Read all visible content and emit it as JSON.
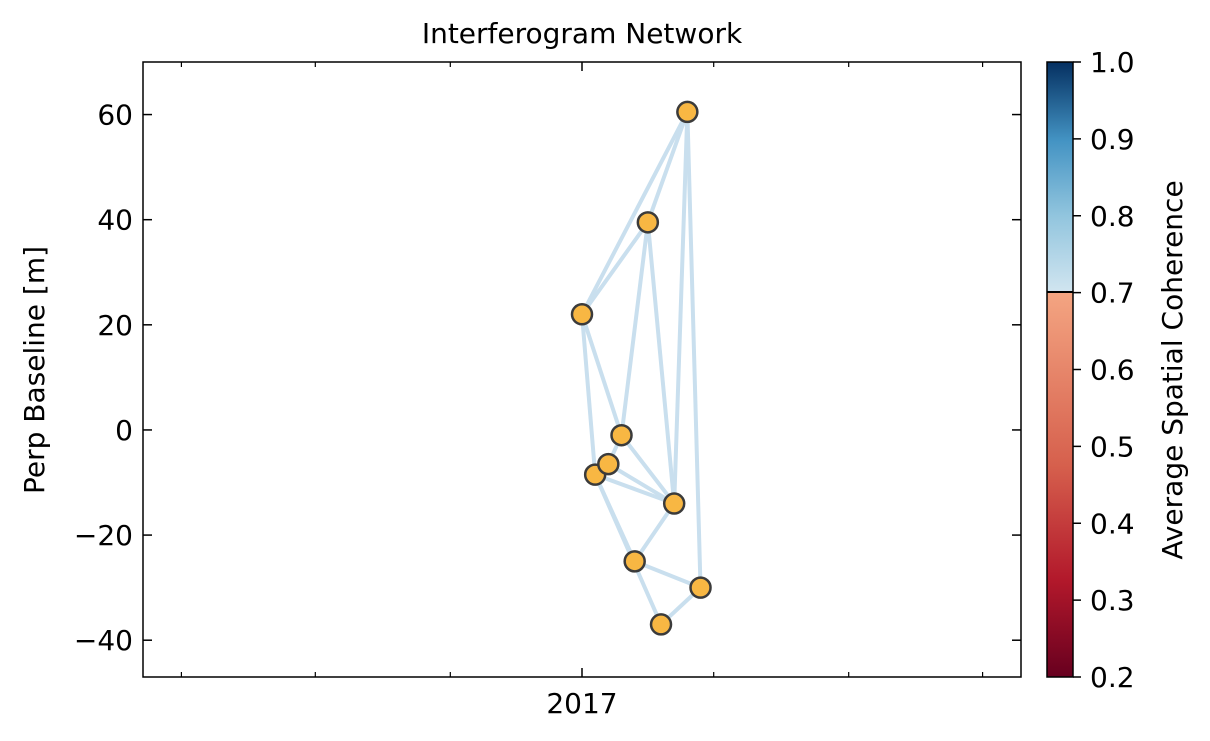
{
  "chart_data": {
    "type": "scatter",
    "title": "Interferogram Network",
    "xlabel": "",
    "ylabel": "Perp Baseline [m]",
    "x_tick_labels": [
      "2017"
    ],
    "y_ticks": [
      -40,
      -20,
      0,
      20,
      40,
      60
    ],
    "ylim": [
      -47,
      70
    ],
    "grid": false,
    "nodes": [
      {
        "id": "A",
        "date": "2017-01-01",
        "bperp": 22
      },
      {
        "id": "B",
        "date": "2017-01-13",
        "bperp": -8.5
      },
      {
        "id": "C",
        "date": "2017-01-25",
        "bperp": -6.5
      },
      {
        "id": "D",
        "date": "2017-02-06",
        "bperp": -1
      },
      {
        "id": "E",
        "date": "2017-02-18",
        "bperp": -25
      },
      {
        "id": "F",
        "date": "2017-03-02",
        "bperp": 39.5
      },
      {
        "id": "G",
        "date": "2017-03-14",
        "bperp": -37
      },
      {
        "id": "H",
        "date": "2017-03-26",
        "bperp": -14
      },
      {
        "id": "I",
        "date": "2017-04-07",
        "bperp": 60.5
      },
      {
        "id": "J",
        "date": "2017-04-19",
        "bperp": -30
      }
    ],
    "edges": [
      [
        "A",
        "I"
      ],
      [
        "A",
        "F"
      ],
      [
        "A",
        "D"
      ],
      [
        "A",
        "B"
      ],
      [
        "F",
        "I"
      ],
      [
        "F",
        "D"
      ],
      [
        "F",
        "H"
      ],
      [
        "I",
        "H"
      ],
      [
        "I",
        "J"
      ],
      [
        "D",
        "C"
      ],
      [
        "D",
        "H"
      ],
      [
        "C",
        "B"
      ],
      [
        "C",
        "H"
      ],
      [
        "B",
        "H"
      ],
      [
        "B",
        "E"
      ],
      [
        "B",
        "G"
      ],
      [
        "E",
        "H"
      ],
      [
        "E",
        "J"
      ],
      [
        "G",
        "J"
      ]
    ],
    "node_color": "#f8b743",
    "edge_color": "#c9dfee",
    "colorbar": {
      "label": "Average Spatial Coherence",
      "range": [
        0.2,
        1.0
      ],
      "ticks": [
        "0.2",
        "0.3",
        "0.4",
        "0.5",
        "0.6",
        "0.7",
        "0.8",
        "0.9",
        "1.0"
      ],
      "split": 0.7
    }
  }
}
